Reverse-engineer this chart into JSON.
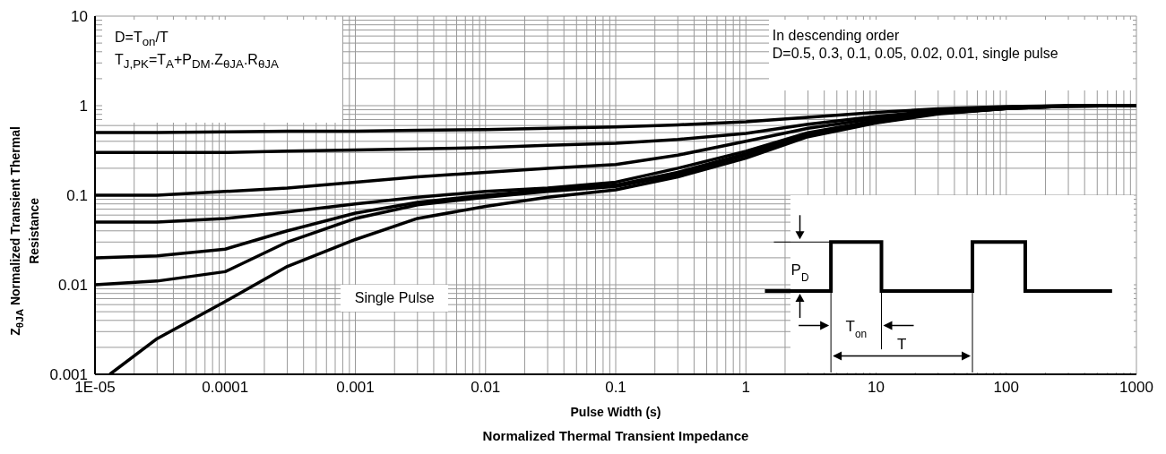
{
  "chart_data": {
    "type": "line",
    "title": "Normalized Thermal Transient Impedance",
    "xlabel": "Pulse Width (s)",
    "ylabel": "Z$_{θJA}$ Normalized Transient Thermal Resistance",
    "log": "xy",
    "grid": true,
    "marker": "none",
    "line_style": "solid",
    "xlim": [
      1e-05,
      1000
    ],
    "xticks": [
      {
        "value": 1e-05,
        "label": "1E-05"
      },
      0.0001,
      0.001,
      0.01,
      0.1,
      1,
      10,
      100,
      1000
    ],
    "ylim": [
      0.001,
      10
    ],
    "yticks": [
      0.001,
      0.01,
      0.1,
      1,
      10
    ],
    "annotations": [
      "D=T$_{on}$/T",
      "T$_{J,PK}$=T$_{A}$+P$_{DM}$.Z$_{θJA}$.R$_{θJA}$",
      "In descending order",
      "D=0.5, 0.3, 0.1, 0.05, 0.02, 0.01, single pulse",
      "Single Pulse",
      "P$_{D}$",
      "T$_{on}$",
      "T"
    ],
    "series": [
      {
        "color": "#000000",
        "x": [
          1e-05,
          3e-05,
          0.0001,
          0.0003,
          0.001,
          0.003,
          0.01,
          0.03,
          0.1,
          0.3,
          1,
          3,
          10,
          30,
          100,
          300,
          1000
        ],
        "values": [
          0.5,
          0.5,
          0.51,
          0.52,
          0.52,
          0.53,
          0.54,
          0.56,
          0.58,
          0.61,
          0.66,
          0.74,
          0.84,
          0.92,
          0.98,
          1,
          1
        ]
      },
      {
        "color": "#000000",
        "x": [
          1e-05,
          3e-05,
          0.0001,
          0.0003,
          0.001,
          0.003,
          0.01,
          0.03,
          0.1,
          0.3,
          1,
          3,
          10,
          30,
          100,
          300,
          1000
        ],
        "values": [
          0.3,
          0.3,
          0.3,
          0.31,
          0.32,
          0.33,
          0.34,
          0.36,
          0.38,
          0.42,
          0.49,
          0.62,
          0.76,
          0.88,
          0.96,
          1,
          1
        ]
      },
      {
        "color": "#000000",
        "x": [
          1e-05,
          3e-05,
          0.0001,
          0.0003,
          0.001,
          0.003,
          0.01,
          0.03,
          0.1,
          0.3,
          1,
          3,
          10,
          30,
          100,
          300,
          1000
        ],
        "values": [
          0.1,
          0.1,
          0.11,
          0.12,
          0.14,
          0.16,
          0.18,
          0.2,
          0.22,
          0.28,
          0.4,
          0.56,
          0.72,
          0.85,
          0.95,
          0.99,
          1
        ]
      },
      {
        "color": "#000000",
        "x": [
          1e-05,
          3e-05,
          0.0001,
          0.0003,
          0.001,
          0.003,
          0.01,
          0.03,
          0.1,
          0.3,
          1,
          3,
          10,
          30,
          100,
          300,
          1000
        ],
        "values": [
          0.05,
          0.05,
          0.055,
          0.065,
          0.08,
          0.095,
          0.11,
          0.12,
          0.14,
          0.2,
          0.31,
          0.5,
          0.68,
          0.83,
          0.94,
          0.99,
          1
        ]
      },
      {
        "color": "#000000",
        "x": [
          1e-05,
          3e-05,
          0.0001,
          0.0003,
          0.001,
          0.003,
          0.01,
          0.03,
          0.1,
          0.3,
          1,
          3,
          10,
          30,
          100,
          300,
          1000
        ],
        "values": [
          0.02,
          0.021,
          0.025,
          0.04,
          0.063,
          0.083,
          0.1,
          0.115,
          0.13,
          0.18,
          0.29,
          0.48,
          0.66,
          0.82,
          0.93,
          0.99,
          1
        ]
      },
      {
        "color": "#000000",
        "x": [
          1e-05,
          3e-05,
          0.0001,
          0.0003,
          0.001,
          0.003,
          0.01,
          0.03,
          0.1,
          0.3,
          1,
          3,
          10,
          30,
          100,
          300,
          1000
        ],
        "values": [
          0.01,
          0.011,
          0.014,
          0.03,
          0.055,
          0.078,
          0.095,
          0.11,
          0.125,
          0.17,
          0.28,
          0.47,
          0.65,
          0.82,
          0.93,
          0.99,
          1
        ]
      },
      {
        "color": "#000000",
        "x": [
          1.3e-05,
          3e-05,
          0.0001,
          0.0003,
          0.001,
          0.003,
          0.01,
          0.03,
          0.1,
          0.3,
          1,
          3,
          10,
          30,
          100,
          300,
          1000
        ],
        "values": [
          0.001,
          0.0025,
          0.0065,
          0.016,
          0.032,
          0.055,
          0.075,
          0.095,
          0.115,
          0.16,
          0.26,
          0.45,
          0.64,
          0.81,
          0.93,
          0.99,
          1
        ]
      }
    ]
  }
}
